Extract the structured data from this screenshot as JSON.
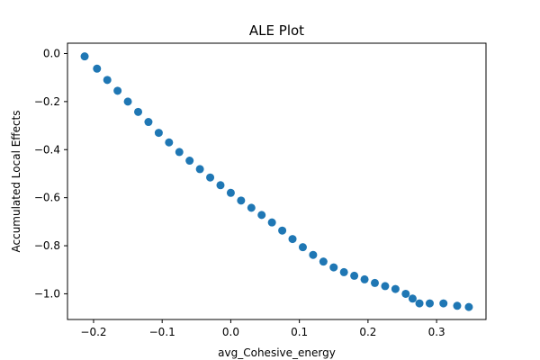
{
  "chart_data": {
    "type": "scatter",
    "title": "ALE Plot",
    "xlabel": "avg_Cohesive_energy",
    "ylabel": "Accumulated Local Effects",
    "xlim": [
      -0.238,
      0.372
    ],
    "ylim": [
      -1.107,
      0.043
    ],
    "xticks": [
      -0.2,
      -0.1,
      0.0,
      0.1,
      0.2,
      0.3
    ],
    "xtick_labels": [
      "−0.2",
      "−0.1",
      "0.0",
      "0.1",
      "0.2",
      "0.3"
    ],
    "yticks": [
      0.0,
      -0.2,
      -0.4,
      -0.6,
      -0.8,
      -1.0
    ],
    "ytick_labels": [
      "0.0",
      "−0.2",
      "−0.4",
      "−0.6",
      "−0.8",
      "−1.0"
    ],
    "grid": false,
    "color": "#1f77b4",
    "points": {
      "x": [
        -0.213,
        -0.195,
        -0.18,
        -0.165,
        -0.15,
        -0.135,
        -0.12,
        -0.105,
        -0.09,
        -0.075,
        -0.06,
        -0.045,
        -0.03,
        -0.015,
        0.0,
        0.015,
        0.03,
        0.045,
        0.06,
        0.075,
        0.09,
        0.105,
        0.12,
        0.135,
        0.15,
        0.165,
        0.18,
        0.195,
        0.21,
        0.225,
        0.24,
        0.255,
        0.265,
        0.275,
        0.29,
        0.31,
        0.33,
        0.347
      ],
      "y": [
        -0.012,
        -0.063,
        -0.11,
        -0.155,
        -0.2,
        -0.243,
        -0.285,
        -0.33,
        -0.37,
        -0.41,
        -0.446,
        -0.481,
        -0.516,
        -0.548,
        -0.58,
        -0.612,
        -0.642,
        -0.672,
        -0.703,
        -0.737,
        -0.772,
        -0.806,
        -0.838,
        -0.866,
        -0.89,
        -0.91,
        -0.925,
        -0.94,
        -0.955,
        -0.968,
        -0.98,
        -1.0,
        -1.02,
        -1.04,
        -1.04,
        -1.04,
        -1.05,
        -1.055
      ]
    }
  }
}
